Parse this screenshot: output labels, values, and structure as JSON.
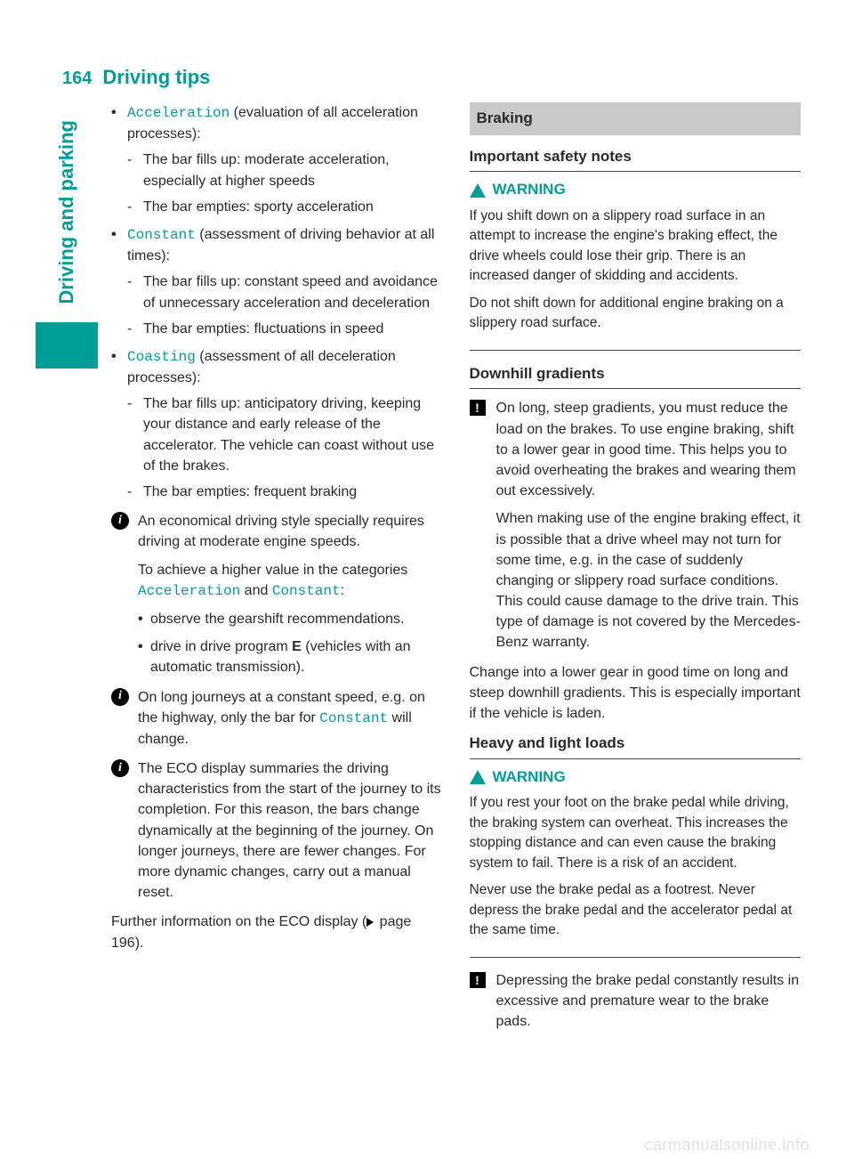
{
  "header": {
    "page_num": "164",
    "title": "Driving tips"
  },
  "side_tab": "Driving and parking",
  "left": {
    "items": [
      {
        "term": "Acceleration",
        "desc": " (evaluation of all acceleration processes):",
        "sub": [
          "The bar fills up: moderate acceleration, especially at higher speeds",
          "The bar empties: sporty acceleration"
        ]
      },
      {
        "term": "Constant",
        "desc": " (assessment of driving behavior at all times):",
        "sub": [
          "The bar fills up: constant speed and avoidance of unnecessary acceleration and deceleration",
          "The bar empties: fluctuations in speed"
        ]
      },
      {
        "term": "Coasting",
        "desc": " (assessment of all deceleration processes):",
        "sub": [
          "The bar fills up: anticipatory driving, keeping your distance and early release of the accelerator. The vehicle can coast without use of the brakes.",
          "The bar empties: frequent braking"
        ]
      }
    ],
    "info1": {
      "p1": "An economical driving style specially requires driving at moderate engine speeds.",
      "p2_a": "To achieve a higher value in the categories ",
      "p2_term1": "Acceleration",
      "p2_mid": " and ",
      "p2_term2": "Constant",
      "p2_b": ":",
      "bullets": [
        "observe the gearshift recommendations.",
        "drive in drive program E (vehicles with an automatic transmission)."
      ]
    },
    "info2_a": "On long journeys at a constant speed, e.g. on the highway, only the bar for ",
    "info2_term": "Constant",
    "info2_b": " will change.",
    "info3": "The ECO display summaries the driving characteristics from the start of the journey to its completion. For this reason, the bars change dynamically at the beginning of the journey. On longer journeys, there are fewer changes. For more dynamic changes, carry out a manual reset.",
    "further_a": "Further information on the ECO display (",
    "further_page": " page 196).",
    "drive_e_a": "drive in drive program ",
    "drive_e_b": "E",
    "drive_e_c": " (vehicles with an automatic transmission)."
  },
  "right": {
    "braking": "Braking",
    "safety_head": "Important safety notes",
    "warn_label": "WARNING",
    "warn1_p1": "If you shift down on a slippery road surface in an attempt to increase the engine's braking effect, the drive wheels could lose their grip. There is an increased danger of skidding and accidents.",
    "warn1_p2": "Do not shift down for additional engine braking on a slippery road surface.",
    "downhill_head": "Downhill gradients",
    "downhill_p1": "On long, steep gradients, you must reduce the load on the brakes. To use engine braking, shift to a lower gear in good time. This helps you to avoid overheating the brakes and wearing them out excessively.",
    "downhill_p2": "When making use of the engine braking effect, it is possible that a drive wheel may not turn for some time, e.g. in the case of suddenly changing or slippery road surface conditions. This could cause damage to the drive train. This type of damage is not covered by the Mercedes-Benz warranty.",
    "downhill_after": "Change into a lower gear in good time on long and steep downhill gradients. This is especially important if the vehicle is laden.",
    "heavy_head": "Heavy and light loads",
    "warn2_p1": "If you rest your foot on the brake pedal while driving, the braking system can overheat. This increases the stopping distance and can even cause the braking system to fail. There is a risk of an accident.",
    "warn2_p2": "Never use the brake pedal as a footrest. Never depress the brake pedal and the accelerator pedal at the same time.",
    "excl_last": "Depressing the brake pedal constantly results in excessive and premature wear to the brake pads."
  },
  "watermark": "carmanualsonline.info"
}
